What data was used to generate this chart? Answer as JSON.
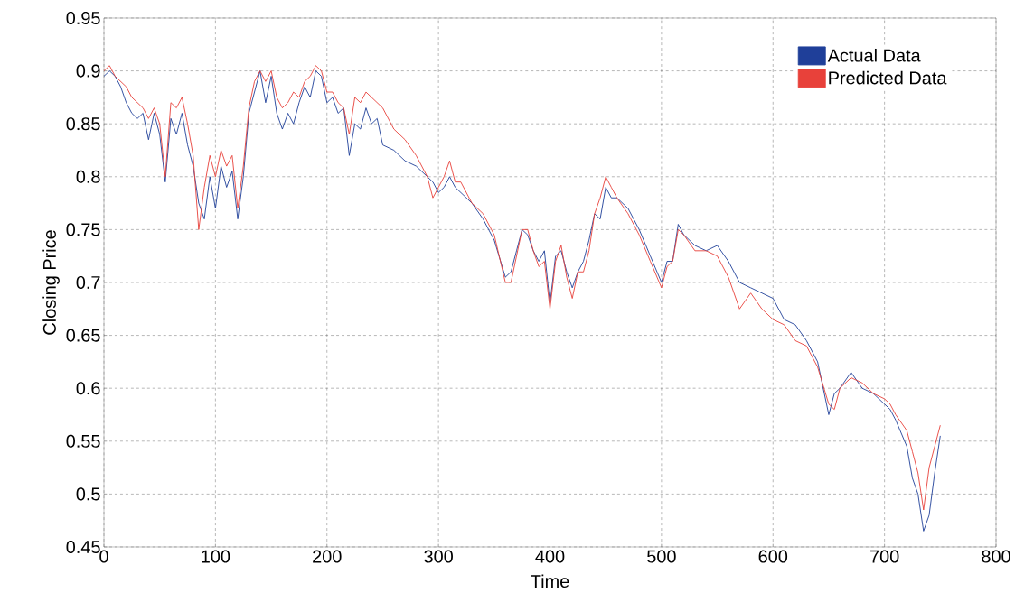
{
  "chart_data": {
    "type": "line",
    "xlabel": "Time",
    "ylabel": "Closing Price",
    "x": [
      0,
      5,
      10,
      15,
      20,
      25,
      30,
      35,
      40,
      45,
      50,
      55,
      60,
      65,
      70,
      75,
      80,
      85,
      90,
      95,
      100,
      105,
      110,
      115,
      120,
      125,
      130,
      135,
      140,
      145,
      150,
      155,
      160,
      165,
      170,
      175,
      180,
      185,
      190,
      195,
      200,
      205,
      210,
      215,
      220,
      225,
      230,
      235,
      240,
      245,
      250,
      260,
      270,
      280,
      290,
      295,
      300,
      305,
      310,
      315,
      320,
      330,
      340,
      350,
      360,
      365,
      370,
      375,
      380,
      385,
      390,
      395,
      400,
      405,
      410,
      415,
      420,
      425,
      430,
      435,
      440,
      445,
      450,
      455,
      460,
      470,
      480,
      490,
      500,
      505,
      510,
      515,
      520,
      530,
      540,
      550,
      560,
      570,
      580,
      590,
      600,
      610,
      620,
      630,
      640,
      650,
      655,
      660,
      670,
      680,
      690,
      700,
      705,
      710,
      720,
      725,
      730,
      735,
      740,
      745,
      750
    ],
    "series": [
      {
        "name": "Actual Data",
        "color": "#1f3f99",
        "values": [
          0.895,
          0.9,
          0.895,
          0.885,
          0.87,
          0.86,
          0.855,
          0.86,
          0.835,
          0.86,
          0.84,
          0.795,
          0.855,
          0.84,
          0.86,
          0.83,
          0.81,
          0.775,
          0.76,
          0.8,
          0.77,
          0.81,
          0.79,
          0.805,
          0.76,
          0.8,
          0.86,
          0.88,
          0.9,
          0.87,
          0.895,
          0.86,
          0.845,
          0.86,
          0.85,
          0.87,
          0.885,
          0.875,
          0.9,
          0.895,
          0.87,
          0.875,
          0.86,
          0.865,
          0.82,
          0.85,
          0.845,
          0.865,
          0.85,
          0.855,
          0.83,
          0.825,
          0.815,
          0.81,
          0.8,
          0.795,
          0.785,
          0.79,
          0.8,
          0.79,
          0.785,
          0.775,
          0.76,
          0.74,
          0.705,
          0.71,
          0.73,
          0.75,
          0.745,
          0.73,
          0.72,
          0.73,
          0.68,
          0.725,
          0.73,
          0.71,
          0.695,
          0.71,
          0.72,
          0.74,
          0.765,
          0.76,
          0.79,
          0.78,
          0.78,
          0.77,
          0.75,
          0.725,
          0.7,
          0.72,
          0.72,
          0.755,
          0.745,
          0.735,
          0.73,
          0.735,
          0.72,
          0.7,
          0.695,
          0.69,
          0.685,
          0.665,
          0.66,
          0.645,
          0.625,
          0.575,
          0.595,
          0.6,
          0.615,
          0.6,
          0.595,
          0.585,
          0.58,
          0.57,
          0.545,
          0.515,
          0.5,
          0.465,
          0.48,
          0.52,
          0.555
        ]
      },
      {
        "name": "Predicted Data",
        "color": "#e8413a",
        "values": [
          0.9,
          0.905,
          0.895,
          0.89,
          0.885,
          0.875,
          0.87,
          0.865,
          0.855,
          0.865,
          0.85,
          0.8,
          0.87,
          0.865,
          0.875,
          0.85,
          0.82,
          0.75,
          0.79,
          0.82,
          0.8,
          0.825,
          0.81,
          0.82,
          0.77,
          0.81,
          0.865,
          0.89,
          0.9,
          0.89,
          0.9,
          0.875,
          0.865,
          0.87,
          0.88,
          0.875,
          0.89,
          0.895,
          0.905,
          0.9,
          0.88,
          0.88,
          0.87,
          0.865,
          0.84,
          0.875,
          0.87,
          0.88,
          0.875,
          0.87,
          0.865,
          0.845,
          0.835,
          0.82,
          0.8,
          0.78,
          0.79,
          0.8,
          0.815,
          0.795,
          0.795,
          0.775,
          0.765,
          0.745,
          0.7,
          0.7,
          0.725,
          0.75,
          0.75,
          0.73,
          0.715,
          0.72,
          0.675,
          0.72,
          0.735,
          0.705,
          0.685,
          0.71,
          0.71,
          0.73,
          0.765,
          0.78,
          0.8,
          0.79,
          0.78,
          0.765,
          0.745,
          0.72,
          0.695,
          0.715,
          0.72,
          0.75,
          0.745,
          0.73,
          0.73,
          0.725,
          0.705,
          0.675,
          0.69,
          0.675,
          0.665,
          0.66,
          0.645,
          0.64,
          0.62,
          0.585,
          0.58,
          0.6,
          0.61,
          0.605,
          0.595,
          0.59,
          0.585,
          0.575,
          0.56,
          0.54,
          0.52,
          0.485,
          0.525,
          0.545,
          0.565
        ]
      }
    ],
    "xlim": [
      0,
      800
    ],
    "xticks": [
      0,
      100,
      200,
      300,
      400,
      500,
      600,
      700,
      800
    ],
    "ylim": [
      0.45,
      0.95
    ],
    "yticks": [
      0.45,
      0.5,
      0.55,
      0.6,
      0.65,
      0.7,
      0.75,
      0.8,
      0.85,
      0.9,
      0.95
    ],
    "grid": true,
    "legend": "top right"
  }
}
